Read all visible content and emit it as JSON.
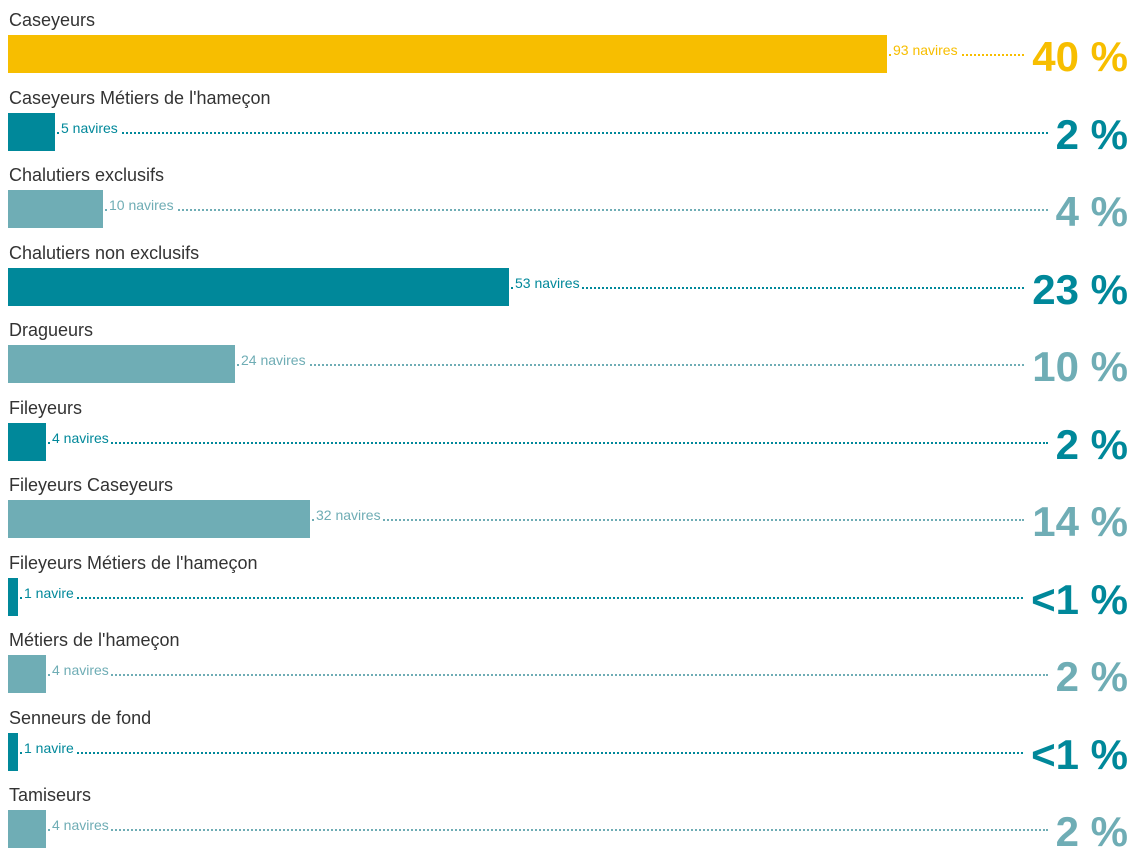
{
  "chart_data": {
    "type": "bar",
    "orientation": "horizontal",
    "categories": [
      "Caseyeurs",
      "Caseyeurs Métiers de l'hameçon",
      "Chalutiers exclusifs",
      "Chalutiers non exclusifs",
      "Dragueurs",
      "Fileyeurs",
      "Fileyeurs Caseyeurs",
      "Fileyeurs Métiers de l'hameçon",
      "Métiers de l'hameçon",
      "Senneurs de fond",
      "Tamiseurs"
    ],
    "values": [
      93,
      5,
      10,
      53,
      24,
      4,
      32,
      1,
      4,
      1,
      4
    ],
    "count_labels": [
      "93 navires",
      "5 navires",
      "10 navires",
      "53 navires",
      "24 navires",
      "4 navires",
      "32 navires",
      "1 navire",
      "4 navires",
      "1 navire",
      "4 navires"
    ],
    "percent_labels": [
      "40 %",
      "2 %",
      "4 %",
      "23 %",
      "10 %",
      "2 %",
      "14 %",
      "<1 %",
      "2 %",
      "<1 %",
      "2 %"
    ],
    "colors": [
      "#f7be00",
      "#00889a",
      "#6fadb5",
      "#00889a",
      "#6fadb5",
      "#00889a",
      "#6fadb5",
      "#00889a",
      "#6fadb5",
      "#00889a",
      "#6fadb5"
    ],
    "xlim": [
      0,
      93
    ],
    "grid": false,
    "legend": "none"
  }
}
